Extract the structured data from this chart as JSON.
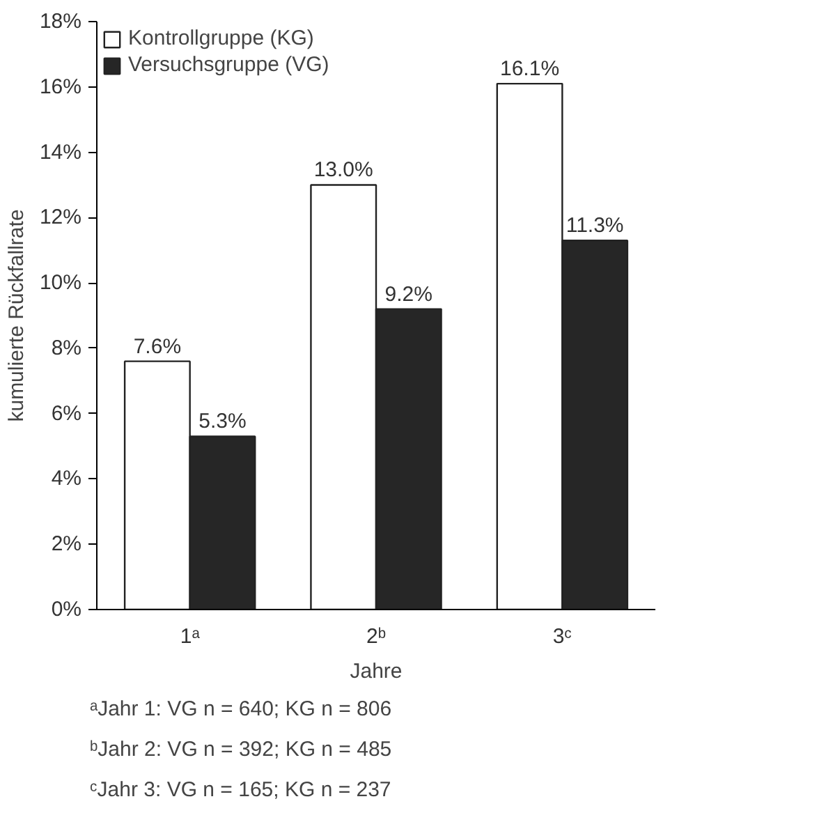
{
  "chart_data": {
    "type": "bar",
    "ylabel": "kumulierte Rückfallrate",
    "xlabel": "Jahre",
    "categories": [
      "1ᵃ",
      "2ᵇ",
      "3ᶜ"
    ],
    "series": [
      {
        "name": "Kontrollgruppe (KG)",
        "color": "#ffffff",
        "values": [
          7.6,
          13.0,
          16.1
        ],
        "value_labels": [
          "7.6%",
          "13.0%",
          "16.1%"
        ]
      },
      {
        "name": "Versuchsgruppe (VG)",
        "color": "#262626",
        "values": [
          5.3,
          9.2,
          11.3
        ],
        "value_labels": [
          "5.3%",
          "9.2%",
          "11.3%"
        ]
      }
    ],
    "ylim": [
      0,
      18
    ],
    "yticks": [
      {
        "value": 0,
        "label": "0%"
      },
      {
        "value": 2,
        "label": "2%"
      },
      {
        "value": 4,
        "label": "4%"
      },
      {
        "value": 6,
        "label": "6%"
      },
      {
        "value": 8,
        "label": "8%"
      },
      {
        "value": 10,
        "label": "10%"
      },
      {
        "value": 12,
        "label": "12%"
      },
      {
        "value": 14,
        "label": "14%"
      },
      {
        "value": 16,
        "label": "16%"
      },
      {
        "value": 18,
        "label": "18%"
      }
    ],
    "grid": false,
    "legend": "top left",
    "annotations": [
      "ᵃJahr 1: VG n = 640; KG n = 806",
      "ᵇJahr 2: VG n = 392; KG n = 485",
      "ᶜJahr 3: VG n = 165; KG n = 237"
    ]
  }
}
